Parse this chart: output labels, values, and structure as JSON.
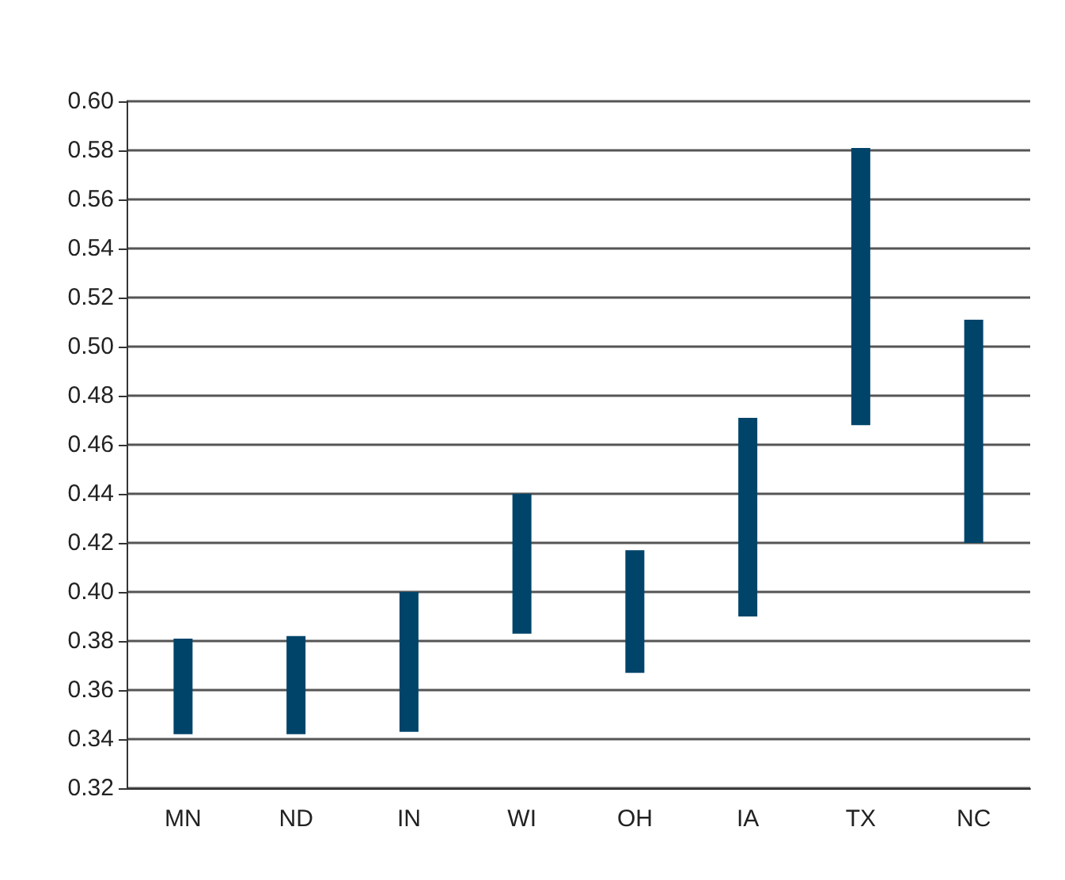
{
  "chart_data": {
    "type": "bar",
    "categories": [
      "MN",
      "ND",
      "IN",
      "WI",
      "OH",
      "IA",
      "TX",
      "NC"
    ],
    "base": [
      0.342,
      0.342,
      0.343,
      0.383,
      0.367,
      0.39,
      0.468,
      0.42
    ],
    "values": [
      0.039,
      0.04,
      0.057,
      0.057,
      0.05,
      0.081,
      0.113,
      0.091
    ],
    "color": "#00446a",
    "ylim": [
      0.32,
      0.6
    ],
    "yticks": [
      0.32,
      0.34,
      0.36,
      0.38,
      {
        "value": 0.4,
        "label": "0.40"
      },
      0.42,
      0.44,
      0.46,
      0.48,
      {
        "value": 0.5,
        "label": "0.50"
      },
      0.52,
      0.54,
      0.56,
      0.58,
      {
        "value": 0.6,
        "label": "0.60"
      }
    ],
    "grid": "y"
  }
}
